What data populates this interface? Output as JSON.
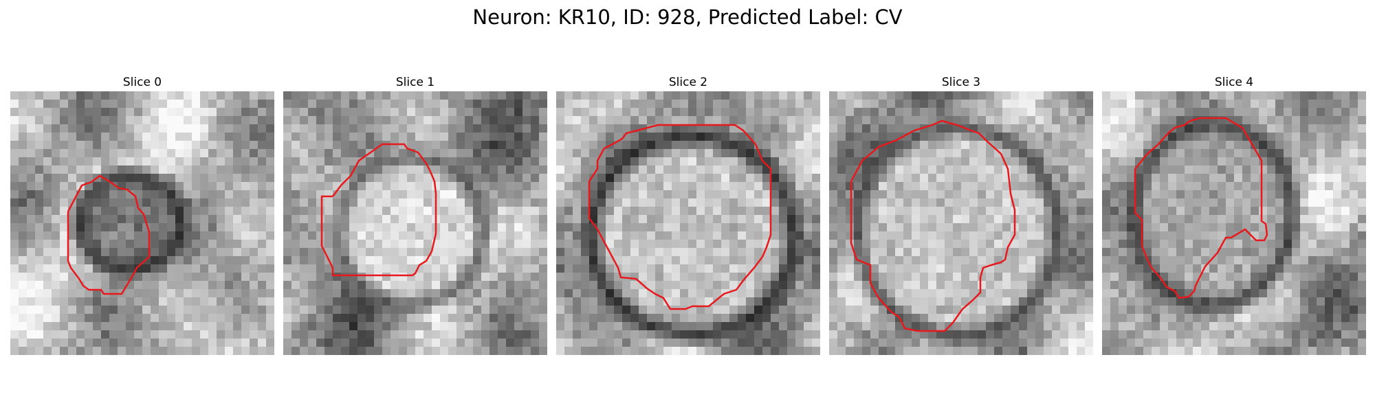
{
  "figure": {
    "title": "Neuron: KR10, ID: 928, Predicted Label: CV",
    "contour_color": "#e8191c"
  },
  "panels": [
    {
      "title": "Slice 0"
    },
    {
      "title": "Slice 1"
    },
    {
      "title": "Slice 2"
    },
    {
      "title": "Slice 3"
    },
    {
      "title": "Slice 4"
    }
  ]
}
